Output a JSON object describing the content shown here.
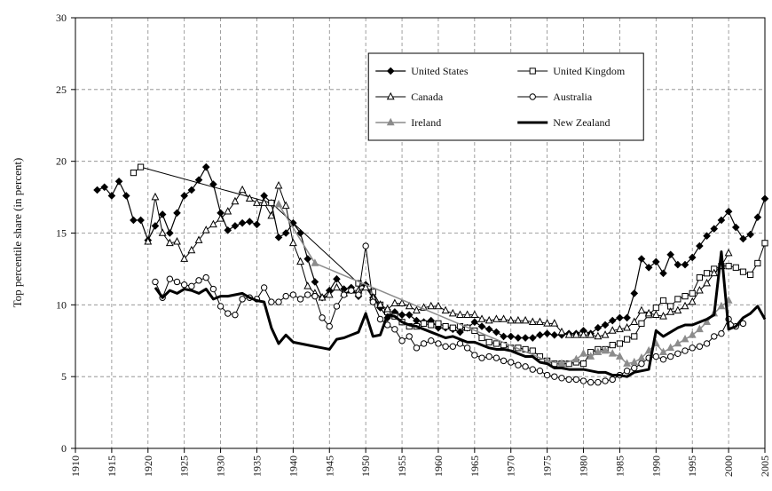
{
  "chart_data": {
    "type": "line",
    "ylabel": "Top percentile share (in percent)",
    "xlim": [
      1910,
      2005
    ],
    "ylim": [
      0,
      30
    ],
    "xticks": [
      1910,
      1915,
      1920,
      1925,
      1930,
      1935,
      1940,
      1945,
      1950,
      1955,
      1960,
      1965,
      1970,
      1975,
      1980,
      1985,
      1990,
      1995,
      2000,
      2005
    ],
    "yticks": [
      0,
      5,
      10,
      15,
      20,
      25,
      30
    ],
    "grid": true,
    "legend": "upper right",
    "series": [
      {
        "name": "United States",
        "color": "#000000",
        "marker": "diamond",
        "line_width": 1.2,
        "x": [
          1913,
          1914,
          1915,
          1916,
          1917,
          1918,
          1919,
          1920,
          1921,
          1922,
          1923,
          1924,
          1925,
          1926,
          1927,
          1928,
          1929,
          1930,
          1931,
          1932,
          1933,
          1934,
          1935,
          1936,
          1937,
          1938,
          1939,
          1940,
          1941,
          1942,
          1943,
          1944,
          1945,
          1946,
          1947,
          1948,
          1949,
          1950,
          1951,
          1952,
          1953,
          1954,
          1955,
          1956,
          1957,
          1958,
          1959,
          1960,
          1961,
          1962,
          1963,
          1964,
          1965,
          1966,
          1967,
          1968,
          1969,
          1970,
          1971,
          1972,
          1973,
          1974,
          1975,
          1976,
          1977,
          1978,
          1979,
          1980,
          1981,
          1982,
          1983,
          1984,
          1985,
          1986,
          1987,
          1988,
          1989,
          1990,
          1991,
          1992,
          1993,
          1994,
          1995,
          1996,
          1997,
          1998,
          1999,
          2000,
          2001,
          2002,
          2003,
          2004,
          2005
        ],
        "values": [
          18.0,
          18.2,
          17.6,
          18.6,
          17.6,
          15.9,
          15.9,
          14.5,
          15.5,
          16.3,
          15.0,
          16.4,
          17.6,
          18.0,
          18.7,
          19.6,
          18.4,
          16.4,
          15.2,
          15.5,
          15.7,
          15.8,
          15.6,
          17.6,
          17.1,
          14.7,
          15.0,
          15.7,
          15.0,
          13.2,
          11.6,
          10.5,
          11.0,
          11.8,
          11.1,
          11.2,
          10.6,
          11.4,
          10.5,
          9.8,
          9.1,
          9.5,
          9.3,
          9.3,
          8.9,
          8.8,
          8.9,
          8.4,
          8.4,
          8.3,
          8.1,
          8.4,
          8.8,
          8.5,
          8.3,
          8.1,
          7.8,
          7.8,
          7.7,
          7.7,
          7.7,
          7.9,
          8.0,
          7.9,
          7.9,
          8.0,
          8.0,
          8.2,
          8.0,
          8.4,
          8.6,
          8.9,
          9.1,
          9.1,
          10.8,
          13.2,
          12.6,
          13.0,
          12.2,
          13.5,
          12.8,
          12.8,
          13.3,
          14.1,
          14.8,
          15.3,
          15.9,
          16.5,
          15.4,
          14.6,
          14.9,
          16.1,
          17.4
        ]
      },
      {
        "name": "United Kingdom",
        "color": "#000000",
        "marker": "square-open",
        "line_width": 1,
        "x": [
          1918,
          1919,
          1937,
          1949,
          1951,
          1952,
          1953,
          1954,
          1955,
          1956,
          1957,
          1958,
          1959,
          1960,
          1961,
          1962,
          1963,
          1964,
          1965,
          1966,
          1967,
          1968,
          1969,
          1970,
          1971,
          1972,
          1973,
          1974,
          1975,
          1976,
          1977,
          1978,
          1979,
          1980,
          1981,
          1982,
          1983,
          1984,
          1985,
          1986,
          1987,
          1988,
          1989,
          1990,
          1991,
          1992,
          1993,
          1994,
          1995,
          1996,
          1997,
          1998,
          1999,
          2000,
          2001,
          2002,
          2003,
          2004,
          2005
        ],
        "values": [
          19.2,
          19.6,
          17.1,
          11.5,
          10.9,
          10.0,
          9.5,
          9.2,
          8.8,
          8.5,
          8.5,
          8.7,
          8.6,
          8.7,
          8.5,
          8.4,
          8.5,
          8.4,
          8.2,
          7.7,
          7.4,
          7.3,
          7.2,
          7.0,
          7.0,
          6.9,
          6.8,
          6.4,
          6.1,
          5.9,
          5.9,
          5.9,
          6.0,
          5.9,
          6.7,
          6.9,
          6.9,
          7.2,
          7.3,
          7.6,
          7.8,
          8.7,
          9.3,
          9.8,
          10.3,
          9.9,
          10.4,
          10.6,
          10.8,
          11.9,
          12.2,
          12.5,
          12.7,
          12.7,
          12.6,
          12.3,
          12.1,
          12.9,
          14.3
        ]
      },
      {
        "name": "Canada",
        "color": "#000000",
        "marker": "triangle-open",
        "line_width": 1,
        "x": [
          1920,
          1921,
          1922,
          1923,
          1924,
          1925,
          1926,
          1927,
          1928,
          1929,
          1930,
          1931,
          1932,
          1933,
          1934,
          1935,
          1936,
          1937,
          1938,
          1939,
          1940,
          1941,
          1942,
          1943,
          1944,
          1945,
          1946,
          1947,
          1948,
          1949,
          1950,
          1951,
          1952,
          1953,
          1954,
          1955,
          1956,
          1957,
          1958,
          1959,
          1960,
          1961,
          1962,
          1963,
          1964,
          1965,
          1966,
          1967,
          1968,
          1969,
          1970,
          1971,
          1972,
          1973,
          1974,
          1975,
          1976,
          1977,
          1978,
          1979,
          1980,
          1981,
          1982,
          1983,
          1984,
          1985,
          1986,
          1987,
          1988,
          1989,
          1990,
          1991,
          1992,
          1993,
          1994,
          1995,
          1996,
          1997,
          1998,
          1999,
          2000
        ],
        "values": [
          14.4,
          17.5,
          15.0,
          14.3,
          14.4,
          13.2,
          13.8,
          14.5,
          15.2,
          15.6,
          16.0,
          16.5,
          17.2,
          18.0,
          17.4,
          17.1,
          17.1,
          16.2,
          18.3,
          16.9,
          14.3,
          13.0,
          11.3,
          10.8,
          10.5,
          10.7,
          11.2,
          10.8,
          11.0,
          11.0,
          11.2,
          10.5,
          10.0,
          9.7,
          10.1,
          10.1,
          9.9,
          9.6,
          9.8,
          9.9,
          9.9,
          9.6,
          9.4,
          9.3,
          9.3,
          9.3,
          9.0,
          8.9,
          9.0,
          9.0,
          8.9,
          8.9,
          8.9,
          8.8,
          8.8,
          8.7,
          8.7,
          8.1,
          7.9,
          7.9,
          7.9,
          7.9,
          7.8,
          7.9,
          8.2,
          8.3,
          8.4,
          8.8,
          9.6,
          9.4,
          9.3,
          9.2,
          9.5,
          9.6,
          9.9,
          10.2,
          11.0,
          11.5,
          12.2,
          12.7,
          13.6
        ]
      },
      {
        "name": "Australia",
        "color": "#000000",
        "marker": "circle-open",
        "line_width": 1,
        "x": [
          1921,
          1922,
          1923,
          1924,
          1925,
          1926,
          1927,
          1928,
          1929,
          1930,
          1931,
          1932,
          1933,
          1934,
          1935,
          1936,
          1937,
          1938,
          1939,
          1940,
          1941,
          1942,
          1943,
          1944,
          1945,
          1946,
          1947,
          1948,
          1949,
          1950,
          1951,
          1952,
          1953,
          1954,
          1955,
          1956,
          1957,
          1958,
          1959,
          1960,
          1961,
          1962,
          1963,
          1964,
          1965,
          1966,
          1967,
          1968,
          1969,
          1970,
          1971,
          1972,
          1973,
          1974,
          1975,
          1976,
          1977,
          1978,
          1979,
          1980,
          1981,
          1982,
          1983,
          1984,
          1985,
          1986,
          1987,
          1988,
          1989,
          1990,
          1991,
          1992,
          1993,
          1994,
          1995,
          1996,
          1997,
          1998,
          1999,
          2000,
          2001,
          2002
        ],
        "values": [
          11.6,
          10.5,
          11.8,
          11.6,
          11.4,
          11.3,
          11.7,
          11.9,
          11.1,
          9.9,
          9.4,
          9.3,
          10.4,
          10.5,
          10.4,
          11.2,
          10.2,
          10.2,
          10.6,
          10.7,
          10.4,
          10.7,
          10.6,
          9.1,
          8.5,
          9.9,
          10.7,
          11.0,
          10.7,
          14.1,
          10.2,
          9.0,
          8.6,
          8.3,
          7.5,
          7.8,
          7.0,
          7.3,
          7.5,
          7.3,
          7.1,
          7.1,
          7.3,
          7.0,
          6.5,
          6.3,
          6.4,
          6.3,
          6.1,
          6.0,
          5.8,
          5.7,
          5.5,
          5.4,
          5.1,
          5.0,
          4.9,
          4.8,
          4.8,
          4.7,
          4.6,
          4.6,
          4.7,
          4.8,
          5.1,
          5.4,
          5.6,
          5.9,
          6.3,
          6.4,
          6.2,
          6.4,
          6.6,
          6.8,
          7.0,
          7.1,
          7.3,
          7.8,
          8.0,
          9.0,
          8.5,
          8.7
        ]
      },
      {
        "name": "Ireland",
        "color": "#8c8c8c",
        "marker": "triangle",
        "line_width": 1.5,
        "x": [
          1938,
          1943,
          1975,
          1977,
          1979,
          1980,
          1981,
          1982,
          1983,
          1984,
          1985,
          1986,
          1987,
          1988,
          1989,
          1990,
          1991,
          1992,
          1993,
          1994,
          1995,
          1996,
          1997,
          1998,
          1999,
          2000
        ],
        "values": [
          17.0,
          12.9,
          6.1,
          5.9,
          6.2,
          6.6,
          6.4,
          6.7,
          6.8,
          6.6,
          6.4,
          5.9,
          6.0,
          6.3,
          6.8,
          7.3,
          6.7,
          7.0,
          7.3,
          7.6,
          7.9,
          8.3,
          8.8,
          9.4,
          9.9,
          10.3
        ]
      },
      {
        "name": "New Zealand",
        "color": "#000000",
        "marker": "none",
        "line_width": 3,
        "x": [
          1921,
          1922,
          1923,
          1924,
          1925,
          1926,
          1927,
          1928,
          1929,
          1930,
          1931,
          1932,
          1933,
          1934,
          1935,
          1936,
          1937,
          1938,
          1939,
          1940,
          1941,
          1942,
          1943,
          1944,
          1945,
          1946,
          1947,
          1948,
          1949,
          1950,
          1951,
          1952,
          1953,
          1954,
          1955,
          1956,
          1957,
          1958,
          1959,
          1960,
          1961,
          1962,
          1963,
          1964,
          1965,
          1966,
          1967,
          1968,
          1969,
          1970,
          1971,
          1972,
          1973,
          1974,
          1975,
          1976,
          1977,
          1978,
          1979,
          1980,
          1981,
          1982,
          1983,
          1984,
          1985,
          1986,
          1987,
          1988,
          1989,
          1990,
          1991,
          1992,
          1993,
          1994,
          1995,
          1996,
          1997,
          1998,
          1999,
          2000,
          2001,
          2002,
          2003,
          2004,
          2005
        ],
        "values": [
          11.2,
          10.5,
          11.0,
          10.8,
          11.1,
          11.0,
          10.8,
          11.1,
          10.4,
          10.6,
          10.6,
          10.7,
          10.8,
          10.5,
          10.3,
          10.2,
          8.4,
          7.3,
          7.9,
          7.4,
          7.3,
          7.2,
          7.1,
          7.0,
          6.9,
          7.6,
          7.7,
          7.9,
          8.1,
          9.4,
          7.8,
          7.9,
          9.3,
          9.2,
          8.8,
          8.6,
          8.5,
          8.3,
          8.1,
          7.9,
          7.7,
          7.8,
          7.6,
          7.4,
          7.4,
          7.2,
          7.0,
          6.9,
          6.9,
          6.8,
          6.6,
          6.4,
          6.4,
          6.0,
          5.9,
          5.6,
          5.6,
          5.5,
          5.5,
          5.5,
          5.4,
          5.3,
          5.3,
          5.1,
          5.1,
          5.0,
          5.3,
          5.4,
          5.5,
          8.2,
          7.8,
          8.1,
          8.4,
          8.6,
          8.6,
          8.8,
          9.0,
          9.3,
          13.7,
          8.3,
          8.5,
          9.1,
          9.4,
          9.9,
          9.0
        ]
      }
    ]
  }
}
